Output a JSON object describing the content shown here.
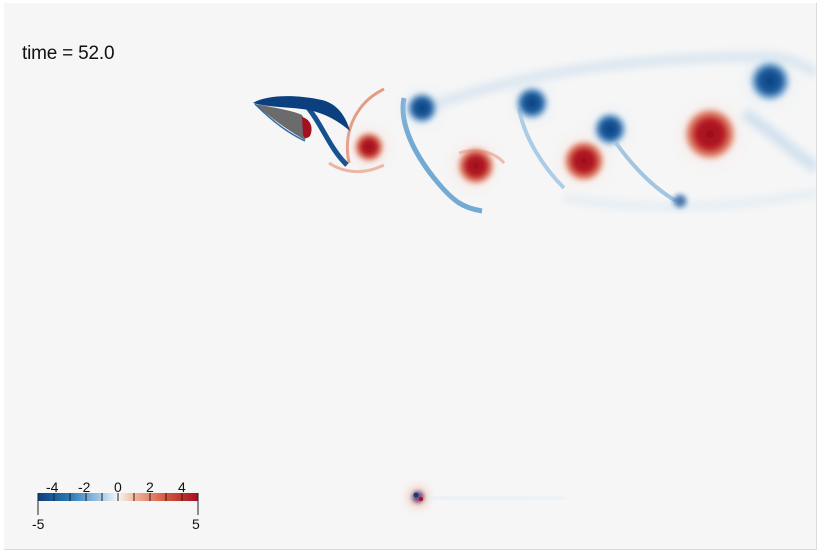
{
  "time_label": "time = 52.0",
  "colorbar": {
    "range": [
      -5,
      5
    ],
    "ticks": [
      "-4",
      "-2",
      "0",
      "2",
      "4"
    ],
    "min_label": "-5",
    "max_label": "5",
    "colormap": "cool-to-warm (blue-white-red)",
    "colors": {
      "negative_dark": "#0b3f7e",
      "negative_mid": "#2c78b8",
      "negative_light": "#a9cde6",
      "zero": "#f6f6f6",
      "positive_light": "#f2b8a0",
      "positive_mid": "#d6563e",
      "positive_dark": "#a3111f"
    }
  },
  "airfoil_color": "#6b6b6b"
}
